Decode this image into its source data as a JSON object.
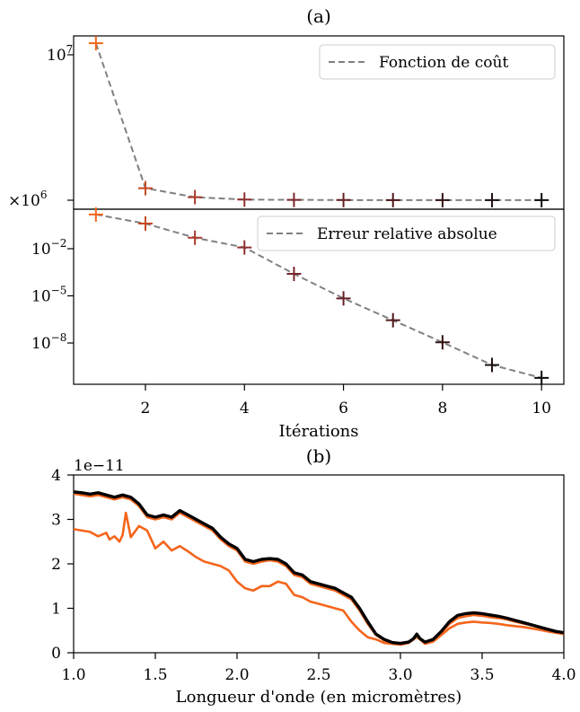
{
  "figure": {
    "panel_a_title": "(a)",
    "panel_b_title": "(b)"
  },
  "chart_data": [
    {
      "type": "line",
      "panel": "a-top",
      "title": "(a)",
      "yscale": "log",
      "legend": "Fonction de coût",
      "legend_placement": "top-right",
      "line_color": "#808080",
      "line_style": "dashed",
      "x": [
        1,
        2,
        3,
        4,
        5,
        6,
        7,
        8,
        9,
        10
      ],
      "values": [
        12000000,
        1210000,
        1050000,
        1010000,
        1005000,
        1003000,
        1002000,
        1001000,
        1001000,
        1001000
      ],
      "marker_colors": [
        "#f4651b",
        "#c64821",
        "#a93a2c",
        "#8f2e2e",
        "#7a262a",
        "#662024",
        "#4e1a1c",
        "#331414",
        "#1e1010",
        "#0d0b0b"
      ],
      "ytick_labels": [
        "10",
        "×10"
      ],
      "ytick_exponents": [
        "7",
        "6"
      ],
      "ylim": [
        975000,
        13500000
      ]
    },
    {
      "type": "line",
      "panel": "a-bottom",
      "yscale": "log",
      "legend": "Erreur relative absolue",
      "legend_placement": "top-right",
      "line_color": "#808080",
      "line_style": "dashed",
      "x": [
        1,
        2,
        3,
        4,
        5,
        6,
        7,
        8,
        9,
        10
      ],
      "values": [
        1.5,
        0.4,
        0.05,
        0.012,
        0.00025,
        6.9e-06,
        2.8e-07,
        1.1e-08,
        4e-10,
        6e-11
      ],
      "marker_colors": [
        "#f4651b",
        "#c64821",
        "#a93a2c",
        "#8f2e2e",
        "#7a262a",
        "#662024",
        "#4e1a1c",
        "#331414",
        "#1e1010",
        "#0d0b0b"
      ],
      "xlabel": "Itérations",
      "xticks": [
        2,
        4,
        6,
        8,
        10
      ],
      "xtick_labels": [
        "2",
        "4",
        "6",
        "8",
        "10"
      ],
      "ytick_labels": [
        "10",
        "10",
        "10"
      ],
      "ytick_exponents": [
        "−2",
        "−5",
        "−8"
      ],
      "xlim": [
        0.55,
        10.45
      ]
    },
    {
      "type": "line",
      "panel": "b",
      "title": "(b)",
      "xlabel": "Longueur d'onde (en micromètres)",
      "ylabel": "",
      "offset_label": "1e−11",
      "xlim": [
        1.0,
        4.0
      ],
      "ylim": [
        0,
        4
      ],
      "xticks": [
        1.0,
        1.5,
        2.0,
        2.5,
        3.0,
        3.5,
        4.0
      ],
      "xtick_labels": [
        "1.0",
        "1.5",
        "2.0",
        "2.5",
        "3.0",
        "3.5",
        "4.0"
      ],
      "yticks": [
        0,
        1,
        2,
        3,
        4
      ],
      "ytick_labels": [
        "0",
        "1",
        "2",
        "3",
        "4"
      ],
      "series": [
        {
          "color": "#f4651b",
          "x": [
            1.0,
            1.05,
            1.1,
            1.15,
            1.2,
            1.22,
            1.25,
            1.28,
            1.3,
            1.32,
            1.35,
            1.4,
            1.45,
            1.5,
            1.55,
            1.6,
            1.65,
            1.7,
            1.75,
            1.8,
            1.85,
            1.9,
            1.95,
            2.0,
            2.05,
            2.1,
            2.15,
            2.2,
            2.25,
            2.3,
            2.35,
            2.4,
            2.45,
            2.5,
            2.55,
            2.6,
            2.65,
            2.7,
            2.75,
            2.8,
            2.85,
            2.9,
            2.95,
            3.0,
            3.05,
            3.08,
            3.1,
            3.12,
            3.15,
            3.2,
            3.25,
            3.3,
            3.35,
            3.4,
            3.45,
            3.5,
            3.55,
            3.6,
            3.65,
            3.7,
            3.75,
            3.8,
            3.85,
            3.9,
            3.95,
            4.0
          ],
          "values": [
            2.78,
            2.75,
            2.72,
            2.62,
            2.7,
            2.55,
            2.62,
            2.5,
            2.65,
            3.15,
            2.6,
            2.85,
            2.75,
            2.35,
            2.5,
            2.3,
            2.4,
            2.28,
            2.15,
            2.05,
            2.0,
            1.95,
            1.85,
            1.6,
            1.45,
            1.4,
            1.5,
            1.5,
            1.6,
            1.55,
            1.3,
            1.25,
            1.15,
            1.1,
            1.05,
            1.0,
            0.95,
            0.7,
            0.5,
            0.35,
            0.3,
            0.22,
            0.2,
            0.18,
            0.22,
            0.3,
            0.35,
            0.3,
            0.2,
            0.25,
            0.4,
            0.55,
            0.65,
            0.68,
            0.7,
            0.68,
            0.67,
            0.65,
            0.62,
            0.6,
            0.58,
            0.55,
            0.52,
            0.48,
            0.45,
            0.42
          ]
        },
        {
          "color": "#f4651b",
          "x": [
            1.0,
            1.05,
            1.1,
            1.15,
            1.2,
            1.25,
            1.3,
            1.35,
            1.4,
            1.45,
            1.5,
            1.55,
            1.6,
            1.65,
            1.7,
            1.75,
            1.8,
            1.85,
            1.9,
            1.95,
            2.0,
            2.05,
            2.1,
            2.15,
            2.2,
            2.25,
            2.3,
            2.35,
            2.4,
            2.45,
            2.5,
            2.55,
            2.6,
            2.65,
            2.7,
            2.75,
            2.8,
            2.85,
            2.9,
            2.95,
            3.0,
            3.05,
            3.08,
            3.1,
            3.12,
            3.15,
            3.2,
            3.25,
            3.3,
            3.35,
            3.4,
            3.45,
            3.5,
            3.55,
            3.6,
            3.65,
            3.7,
            3.75,
            3.8,
            3.85,
            3.9,
            3.95,
            4.0
          ],
          "values": [
            3.58,
            3.55,
            3.52,
            3.55,
            3.5,
            3.45,
            3.5,
            3.45,
            3.3,
            3.05,
            3.0,
            3.05,
            3.0,
            3.15,
            3.05,
            2.95,
            2.85,
            2.75,
            2.55,
            2.4,
            2.3,
            2.05,
            2.0,
            2.05,
            2.08,
            2.05,
            1.95,
            1.75,
            1.7,
            1.55,
            1.5,
            1.45,
            1.4,
            1.3,
            1.2,
            0.95,
            0.65,
            0.4,
            0.28,
            0.22,
            0.2,
            0.23,
            0.3,
            0.38,
            0.3,
            0.22,
            0.28,
            0.45,
            0.65,
            0.78,
            0.82,
            0.85,
            0.83,
            0.8,
            0.78,
            0.75,
            0.7,
            0.66,
            0.62,
            0.58,
            0.52,
            0.48,
            0.44
          ]
        },
        {
          "color": "#000000",
          "x": [
            1.0,
            1.05,
            1.1,
            1.15,
            1.2,
            1.25,
            1.3,
            1.35,
            1.4,
            1.45,
            1.5,
            1.55,
            1.6,
            1.65,
            1.7,
            1.75,
            1.8,
            1.85,
            1.9,
            1.95,
            2.0,
            2.05,
            2.1,
            2.15,
            2.2,
            2.25,
            2.3,
            2.35,
            2.4,
            2.45,
            2.5,
            2.55,
            2.6,
            2.65,
            2.7,
            2.75,
            2.8,
            2.85,
            2.9,
            2.95,
            3.0,
            3.05,
            3.08,
            3.1,
            3.12,
            3.15,
            3.2,
            3.25,
            3.3,
            3.35,
            3.4,
            3.45,
            3.5,
            3.55,
            3.6,
            3.65,
            3.7,
            3.75,
            3.8,
            3.85,
            3.9,
            3.95,
            4.0
          ],
          "values": [
            3.62,
            3.6,
            3.57,
            3.6,
            3.55,
            3.5,
            3.55,
            3.5,
            3.35,
            3.1,
            3.05,
            3.1,
            3.05,
            3.2,
            3.1,
            3.0,
            2.9,
            2.8,
            2.6,
            2.45,
            2.35,
            2.1,
            2.05,
            2.1,
            2.12,
            2.1,
            2.0,
            1.8,
            1.75,
            1.6,
            1.55,
            1.5,
            1.45,
            1.35,
            1.25,
            1.0,
            0.7,
            0.42,
            0.3,
            0.23,
            0.21,
            0.24,
            0.32,
            0.42,
            0.32,
            0.24,
            0.3,
            0.48,
            0.7,
            0.84,
            0.88,
            0.9,
            0.88,
            0.85,
            0.82,
            0.78,
            0.73,
            0.68,
            0.63,
            0.58,
            0.53,
            0.48,
            0.45
          ]
        }
      ]
    }
  ]
}
